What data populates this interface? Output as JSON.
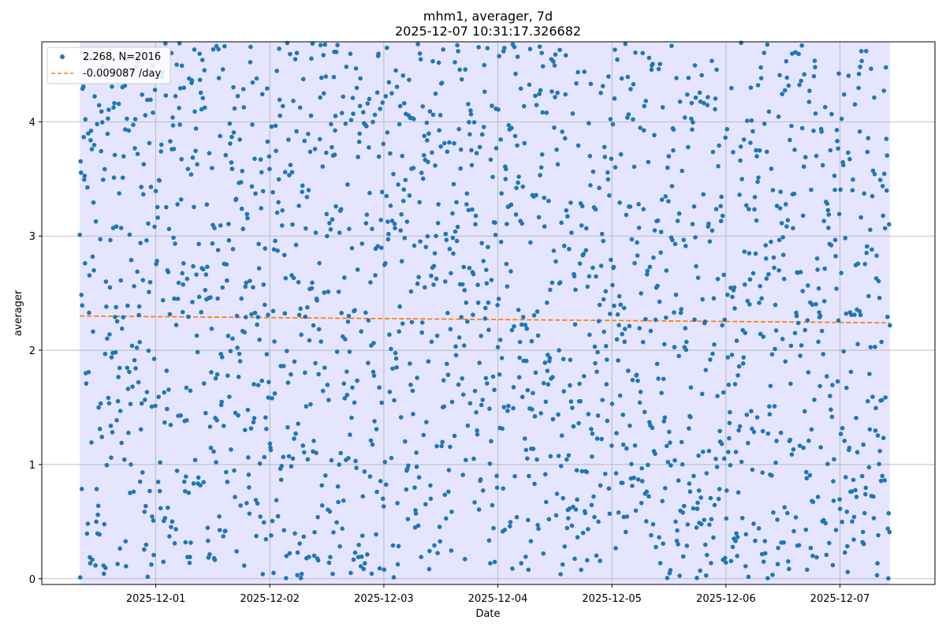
{
  "chart_data": {
    "type": "scatter",
    "title": "mhm1, averager, 7d",
    "subtitle": "2025-12-07 10:31:17.326682",
    "xlabel": "Date",
    "ylabel": "averager",
    "x_ticks": [
      "2025-12-01",
      "2025-12-02",
      "2025-12-03",
      "2025-12-04",
      "2025-12-05",
      "2025-12-06",
      "2025-12-07"
    ],
    "y_ticks": [
      0,
      1,
      2,
      3,
      4
    ],
    "xlim": [
      "2025-11-30 00:00",
      "2025-12-07 20:00"
    ],
    "ylim": [
      -0.05,
      4.7
    ],
    "shaded_range": [
      "2025-11-30 08:00",
      "2025-12-07 10:31"
    ],
    "grid": true,
    "legend": {
      "location": "top-left",
      "entries": [
        {
          "label": "2.268, N=2016",
          "style": "dots",
          "color": "#1f77b4"
        },
        {
          "label": "-0.009087 /day",
          "style": "dashed",
          "color": "#ff7f0e"
        }
      ]
    },
    "series": [
      {
        "name": "2.268, N=2016",
        "style": "dots",
        "color": "#1f77b4",
        "x_start": "2025-11-30 08:00",
        "x_end": "2025-12-07 10:31",
        "count": 2016,
        "mean": 2.268,
        "min": 0.0,
        "max": 4.7
      },
      {
        "name": "-0.009087 /day",
        "style": "dashed",
        "color": "#ff7f0e",
        "x": [
          "2025-11-30 08:00",
          "2025-12-07 10:31"
        ],
        "y": [
          2.3,
          2.24
        ],
        "slope_per_day": -0.009087
      }
    ]
  }
}
